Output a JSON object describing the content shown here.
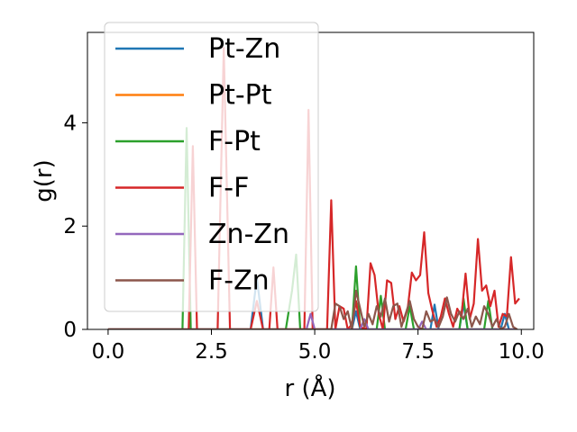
{
  "chart_data": {
    "type": "line",
    "title": "",
    "xlabel": "r (Å)",
    "ylabel": "g(r)",
    "xlim": [
      -0.5,
      10.3
    ],
    "ylim": [
      0,
      5.75
    ],
    "xticks": [
      0.0,
      2.5,
      5.0,
      7.5,
      10.0
    ],
    "xtick_labels": [
      "0.0",
      "2.5",
      "5.0",
      "7.5",
      "10.0"
    ],
    "yticks": [
      0,
      2,
      4
    ],
    "ytick_labels": [
      "0",
      "2",
      "4"
    ],
    "grid": false,
    "legend_position": "top-left",
    "series": [
      {
        "name": "Pt-Zn",
        "color": "#1f77b4",
        "points": [
          [
            0,
            0
          ],
          [
            3.45,
            0
          ],
          [
            3.6,
            1.0
          ],
          [
            3.75,
            0
          ],
          [
            5.9,
            0
          ],
          [
            6.0,
            0.35
          ],
          [
            6.1,
            0
          ],
          [
            7.8,
            0
          ],
          [
            7.9,
            0.48
          ],
          [
            8.0,
            0
          ],
          [
            8.5,
            0
          ],
          [
            8.6,
            0.5
          ],
          [
            8.7,
            0
          ],
          [
            9.5,
            0
          ],
          [
            9.6,
            0.3
          ],
          [
            9.7,
            0
          ],
          [
            9.9,
            0
          ]
        ]
      },
      {
        "name": "Pt-Pt",
        "color": "#ff7f0e",
        "points": [
          [
            0,
            0
          ],
          [
            9.9,
            0
          ]
        ]
      },
      {
        "name": "F-Pt",
        "color": "#2ca02c",
        "points": [
          [
            0,
            0
          ],
          [
            1.8,
            0
          ],
          [
            1.9,
            3.9
          ],
          [
            2.0,
            0
          ],
          [
            4.3,
            0
          ],
          [
            4.45,
            0.75
          ],
          [
            4.55,
            1.45
          ],
          [
            4.65,
            0
          ],
          [
            5.9,
            0
          ],
          [
            6.0,
            1.22
          ],
          [
            6.1,
            0
          ],
          [
            6.5,
            0
          ],
          [
            6.6,
            0.65
          ],
          [
            6.7,
            0
          ],
          [
            7.2,
            0
          ],
          [
            7.3,
            0.45
          ],
          [
            7.4,
            0
          ],
          [
            8.5,
            0
          ],
          [
            8.6,
            0.6
          ],
          [
            8.7,
            0
          ],
          [
            9.1,
            0
          ],
          [
            9.2,
            0.55
          ],
          [
            9.3,
            0
          ],
          [
            9.9,
            0
          ]
        ]
      },
      {
        "name": "F-F",
        "color": "#d62728",
        "points": [
          [
            0,
            0
          ],
          [
            1.95,
            0
          ],
          [
            2.05,
            3.55
          ],
          [
            2.15,
            0
          ],
          [
            2.65,
            0
          ],
          [
            2.8,
            5.45
          ],
          [
            2.95,
            0
          ],
          [
            3.45,
            0
          ],
          [
            3.6,
            0.55
          ],
          [
            3.75,
            0
          ],
          [
            3.9,
            0
          ],
          [
            4.0,
            1.2
          ],
          [
            4.1,
            0
          ],
          [
            4.75,
            0
          ],
          [
            4.85,
            4.25
          ],
          [
            4.95,
            0
          ],
          [
            5.3,
            0
          ],
          [
            5.4,
            2.5
          ],
          [
            5.5,
            0
          ],
          [
            5.6,
            0.45
          ],
          [
            5.7,
            0.4
          ],
          [
            5.8,
            0
          ],
          [
            5.9,
            0.1
          ],
          [
            6.0,
            0.55
          ],
          [
            6.1,
            0.05
          ],
          [
            6.25,
            0
          ],
          [
            6.35,
            1.28
          ],
          [
            6.45,
            1.05
          ],
          [
            6.55,
            0.3
          ],
          [
            6.65,
            0
          ],
          [
            6.75,
            0.95
          ],
          [
            6.85,
            0.9
          ],
          [
            6.95,
            0.2
          ],
          [
            7.05,
            0.45
          ],
          [
            7.15,
            0.15
          ],
          [
            7.25,
            0.4
          ],
          [
            7.35,
            1.1
          ],
          [
            7.45,
            0.95
          ],
          [
            7.55,
            1.05
          ],
          [
            7.65,
            1.88
          ],
          [
            7.75,
            0.7
          ],
          [
            7.85,
            0.35
          ],
          [
            7.95,
            0.05
          ],
          [
            8.05,
            0.25
          ],
          [
            8.15,
            0.6
          ],
          [
            8.25,
            0.3
          ],
          [
            8.35,
            0.05
          ],
          [
            8.45,
            0.4
          ],
          [
            8.55,
            0.25
          ],
          [
            8.65,
            1.08
          ],
          [
            8.75,
            0.2
          ],
          [
            8.85,
            0.5
          ],
          [
            8.95,
            1.75
          ],
          [
            9.05,
            0.75
          ],
          [
            9.15,
            0.85
          ],
          [
            9.25,
            0.45
          ],
          [
            9.35,
            0.75
          ],
          [
            9.45,
            0.05
          ],
          [
            9.55,
            0.3
          ],
          [
            9.65,
            0.25
          ],
          [
            9.75,
            1.4
          ],
          [
            9.85,
            0.5
          ],
          [
            9.95,
            0.6
          ]
        ]
      },
      {
        "name": "Zn-Zn",
        "color": "#9467bd",
        "points": [
          [
            0,
            0
          ],
          [
            4.8,
            0
          ],
          [
            4.9,
            0.3
          ],
          [
            5.0,
            0
          ],
          [
            6.1,
            0
          ],
          [
            6.2,
            0.2
          ],
          [
            6.3,
            0
          ],
          [
            7.5,
            0
          ],
          [
            7.6,
            0.15
          ],
          [
            7.7,
            0
          ],
          [
            9.9,
            0
          ]
        ]
      },
      {
        "name": "F-Zn",
        "color": "#8c564b",
        "points": [
          [
            0,
            0
          ],
          [
            5.4,
            0
          ],
          [
            5.5,
            0.5
          ],
          [
            5.6,
            0.45
          ],
          [
            5.7,
            0.2
          ],
          [
            5.8,
            0.35
          ],
          [
            5.9,
            0
          ],
          [
            6.0,
            0.75
          ],
          [
            6.1,
            0.4
          ],
          [
            6.2,
            0.05
          ],
          [
            6.3,
            0.3
          ],
          [
            6.4,
            0.1
          ],
          [
            6.5,
            0.45
          ],
          [
            6.6,
            0.25
          ],
          [
            6.7,
            0.6
          ],
          [
            6.8,
            0.15
          ],
          [
            6.9,
            0.45
          ],
          [
            7.0,
            0.5
          ],
          [
            7.1,
            0.05
          ],
          [
            7.2,
            0.3
          ],
          [
            7.3,
            0.55
          ],
          [
            7.4,
            0.2
          ],
          [
            7.5,
            0.05
          ],
          [
            7.6,
            0
          ],
          [
            7.7,
            0.35
          ],
          [
            7.8,
            0.15
          ],
          [
            7.9,
            0.2
          ],
          [
            8.0,
            0.05
          ],
          [
            8.1,
            0.25
          ],
          [
            8.2,
            0.62
          ],
          [
            8.3,
            0.3
          ],
          [
            8.4,
            0.15
          ],
          [
            8.5,
            0.35
          ],
          [
            8.6,
            0.2
          ],
          [
            8.7,
            0.4
          ],
          [
            8.8,
            0.05
          ],
          [
            8.9,
            0.25
          ],
          [
            9.0,
            0.1
          ],
          [
            9.1,
            0.45
          ],
          [
            9.2,
            0.3
          ],
          [
            9.3,
            0.05
          ],
          [
            9.4,
            0.2
          ],
          [
            9.5,
            0
          ],
          [
            9.6,
            0.05
          ],
          [
            9.7,
            0.3
          ],
          [
            9.8,
            0.05
          ],
          [
            9.9,
            0
          ]
        ]
      }
    ]
  }
}
